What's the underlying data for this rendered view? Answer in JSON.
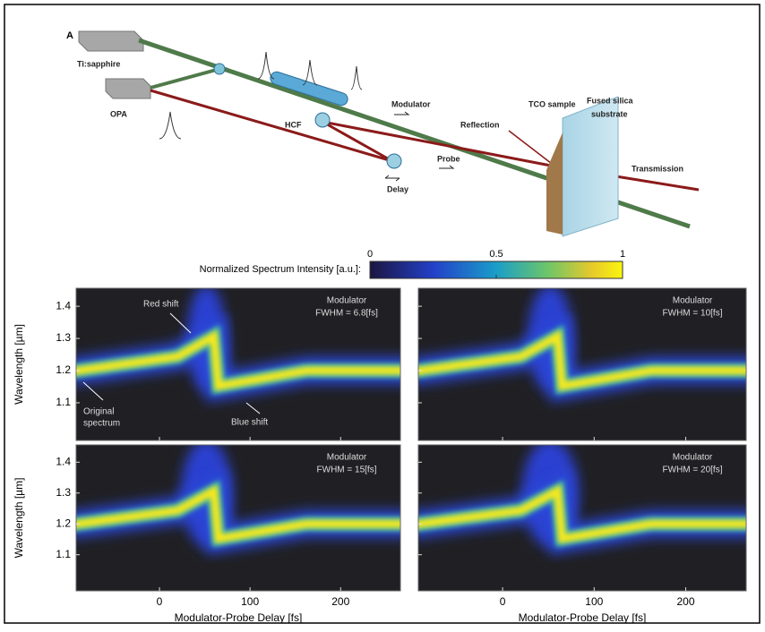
{
  "setup": {
    "panel_letter": "A",
    "laser": "Ti:sapphire",
    "opa": "OPA",
    "hcf": "HCF",
    "modulator": "Modulator",
    "reflection": "Reflection",
    "sample": "TCO sample",
    "substrate_1": "Fused silica",
    "substrate_2": "substrate",
    "transmission": "Transmission",
    "probe": "Probe",
    "delay": "Delay"
  },
  "colorbar": {
    "label": "Normalized Spectrum Intensity [a.u.]:",
    "lim": [
      0,
      1
    ],
    "ticks": [
      0,
      0.5,
      1
    ]
  },
  "axes": {
    "xlabel": "Modulator-Probe Delay [fs]",
    "ylabel": "Wavelength [µm]",
    "xlim": [
      -92,
      266
    ],
    "ylim": [
      0.983,
      1.456
    ],
    "xticks": [
      0,
      100,
      200
    ],
    "yticks": [
      1.1,
      1.2,
      1.3,
      1.4
    ]
  },
  "panels": [
    {
      "title": "Modulator",
      "fwhm": "FWHM = 6.8[fs]",
      "red_shift": "Red shift",
      "blue_shift": "Blue shift",
      "original_1": "Original",
      "original_2": "spectrum"
    },
    {
      "title": "Modulator",
      "fwhm": "FWHM = 10[fs]"
    },
    {
      "title": "Modulator",
      "fwhm": "FWHM = 15[fs]"
    },
    {
      "title": "Modulator",
      "fwhm": "FWHM = 20[fs]"
    }
  ]
}
